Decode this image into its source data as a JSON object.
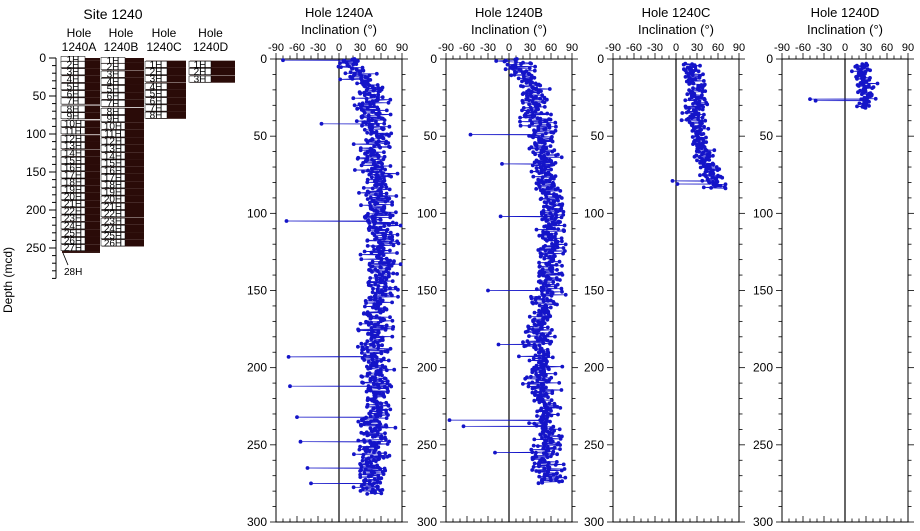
{
  "figure": {
    "site_title": "Site 1240",
    "ylabel": "Depth (mcd)",
    "depth_ticks": [
      "0",
      "50",
      "100",
      "150",
      "200",
      "250"
    ],
    "data_color": "#1414c8",
    "core_color": "#2a0b08"
  },
  "core_columns": [
    {
      "hole_label_line1": "Hole",
      "hole_label_line2": "1240A",
      "cores": [
        {
          "label": "1H",
          "top": 0,
          "bottom": 3.8
        },
        {
          "label": "2H",
          "top": 3.8,
          "bottom": 13.3
        },
        {
          "label": "3H",
          "top": 13.3,
          "bottom": 22.8
        },
        {
          "label": "4H",
          "top": 22.8,
          "bottom": 32.8
        },
        {
          "label": "5H",
          "top": 32.8,
          "bottom": 42.3
        },
        {
          "label": "6H",
          "top": 42.3,
          "bottom": 51.8
        },
        {
          "label": "7H",
          "top": 51.8,
          "bottom": 61.3
        },
        {
          "label": "8H",
          "top": 62.5,
          "bottom": 71.5
        },
        {
          "label": "9H",
          "top": 71.5,
          "bottom": 80.5
        },
        {
          "label": "10H",
          "top": 82.0,
          "bottom": 91.0
        },
        {
          "label": "11H",
          "top": 91.0,
          "bottom": 100.5
        },
        {
          "label": "12H",
          "top": 101.5,
          "bottom": 110.5
        },
        {
          "label": "13H",
          "top": 110.5,
          "bottom": 120.0
        },
        {
          "label": "14H",
          "top": 120.5,
          "bottom": 130.0
        },
        {
          "label": "15H",
          "top": 130.0,
          "bottom": 139.5
        },
        {
          "label": "16H",
          "top": 139.5,
          "bottom": 149.0
        },
        {
          "label": "17H",
          "top": 149.0,
          "bottom": 158.5
        },
        {
          "label": "18H",
          "top": 158.5,
          "bottom": 168.0
        },
        {
          "label": "19H",
          "top": 168.0,
          "bottom": 177.5
        },
        {
          "label": "20H",
          "top": 177.5,
          "bottom": 187.0
        },
        {
          "label": "21H",
          "top": 187.0,
          "bottom": 196.5
        },
        {
          "label": "22H",
          "top": 196.5,
          "bottom": 206.0
        },
        {
          "label": "23H",
          "top": 206.0,
          "bottom": 215.5
        },
        {
          "label": "24H",
          "top": 215.5,
          "bottom": 225.5
        },
        {
          "label": "25H",
          "top": 225.5,
          "bottom": 235.5
        },
        {
          "label": "26H",
          "top": 235.5,
          "bottom": 245.0
        },
        {
          "label": "27H",
          "top": 245.0,
          "bottom": 254.0
        },
        {
          "label": "28H",
          "top": 254.0,
          "bottom": 256.5
        }
      ]
    },
    {
      "hole_label_line1": "Hole",
      "hole_label_line2": "1240B",
      "cores": [
        {
          "label": "1H",
          "top": 0,
          "bottom": 6.5
        },
        {
          "label": "2H",
          "top": 6.5,
          "bottom": 16.0
        },
        {
          "label": "3H",
          "top": 16.5,
          "bottom": 26.0
        },
        {
          "label": "4H",
          "top": 26.0,
          "bottom": 35.5
        },
        {
          "label": "5H",
          "top": 35.5,
          "bottom": 45.5
        },
        {
          "label": "6H",
          "top": 45.5,
          "bottom": 55.0
        },
        {
          "label": "7H",
          "top": 55.0,
          "bottom": 64.5
        },
        {
          "label": "8H",
          "top": 65.5,
          "bottom": 75.0
        },
        {
          "label": "9H",
          "top": 75.0,
          "bottom": 84.5
        },
        {
          "label": "10H",
          "top": 84.5,
          "bottom": 94.5
        },
        {
          "label": "11H",
          "top": 94.5,
          "bottom": 104.5
        },
        {
          "label": "12H",
          "top": 104.5,
          "bottom": 114.0
        },
        {
          "label": "13H",
          "top": 114.0,
          "bottom": 124.0
        },
        {
          "label": "14H",
          "top": 124.0,
          "bottom": 133.5
        },
        {
          "label": "15H",
          "top": 133.5,
          "bottom": 143.0
        },
        {
          "label": "16H",
          "top": 143.0,
          "bottom": 152.5
        },
        {
          "label": "17H",
          "top": 152.5,
          "bottom": 162.0
        },
        {
          "label": "18H",
          "top": 162.0,
          "bottom": 171.5
        },
        {
          "label": "19H",
          "top": 171.5,
          "bottom": 181.0
        },
        {
          "label": "20H",
          "top": 181.0,
          "bottom": 190.5
        },
        {
          "label": "21H",
          "top": 190.5,
          "bottom": 200.0
        },
        {
          "label": "22H",
          "top": 200.0,
          "bottom": 209.5
        },
        {
          "label": "23H",
          "top": 210.0,
          "bottom": 219.5
        },
        {
          "label": "24H",
          "top": 219.5,
          "bottom": 229.0
        },
        {
          "label": "25H",
          "top": 229.0,
          "bottom": 238.5
        },
        {
          "label": "26H",
          "top": 238.5,
          "bottom": 248.0
        }
      ]
    },
    {
      "hole_label_line1": "Hole",
      "hole_label_line2": "1240C",
      "cores": [
        {
          "label": "1H",
          "top": 3.5,
          "bottom": 13.0
        },
        {
          "label": "2H",
          "top": 13.0,
          "bottom": 22.5
        },
        {
          "label": "3H",
          "top": 22.5,
          "bottom": 32.0
        },
        {
          "label": "4H",
          "top": 32.5,
          "bottom": 42.0
        },
        {
          "label": "5H",
          "top": 42.0,
          "bottom": 51.5
        },
        {
          "label": "6H",
          "top": 51.5,
          "bottom": 61.0
        },
        {
          "label": "7H",
          "top": 61.0,
          "bottom": 70.5
        },
        {
          "label": "8H",
          "top": 70.5,
          "bottom": 80.0
        }
      ]
    },
    {
      "hole_label_line1": "Hole",
      "hole_label_line2": "1240D",
      "cores": [
        {
          "label": "1H",
          "top": 3.5,
          "bottom": 13.0
        },
        {
          "label": "2H",
          "top": 13.0,
          "bottom": 22.5
        },
        {
          "label": "3H",
          "top": 23.0,
          "bottom": 32.5
        }
      ]
    }
  ],
  "chart_data": [
    {
      "type": "scatter",
      "title": "Hole 1240A",
      "xlabel": "Inclination (°)",
      "ylabel": "",
      "xlim": [
        -90,
        90
      ],
      "ylim": [
        300,
        0
      ],
      "xticks": [
        "-90",
        "-60",
        "-30",
        "0",
        "30",
        "60",
        "90"
      ],
      "yticks": [
        "0",
        "50",
        "100",
        "150",
        "200",
        "250",
        "300"
      ],
      "depth_range": [
        0,
        282
      ],
      "trend": [
        [
          0,
          10
        ],
        [
          20,
          45
        ],
        [
          60,
          52
        ],
        [
          100,
          58
        ],
        [
          140,
          62
        ],
        [
          160,
          55
        ],
        [
          190,
          48
        ],
        [
          220,
          52
        ],
        [
          250,
          50
        ],
        [
          282,
          45
        ]
      ],
      "spread": 22,
      "outliers": [
        [
          0.8,
          -80
        ],
        [
          42,
          -25
        ],
        [
          105,
          -75
        ],
        [
          193,
          -72
        ],
        [
          212,
          -70
        ],
        [
          232,
          -60
        ],
        [
          248,
          -55
        ],
        [
          265,
          -45
        ],
        [
          275,
          -40
        ]
      ]
    },
    {
      "type": "scatter",
      "title": "Hole 1240B",
      "xlabel": "Inclination (°)",
      "ylabel": "",
      "xlim": [
        -90,
        90
      ],
      "ylim": [
        300,
        0
      ],
      "xticks": [
        "-90",
        "-60",
        "-30",
        "0",
        "30",
        "60",
        "90"
      ],
      "yticks": [
        "0",
        "50",
        "100",
        "150",
        "200",
        "250",
        "300"
      ],
      "depth_range": [
        0,
        275
      ],
      "trend": [
        [
          0,
          5
        ],
        [
          20,
          35
        ],
        [
          60,
          50
        ],
        [
          100,
          62
        ],
        [
          140,
          58
        ],
        [
          160,
          50
        ],
        [
          190,
          42
        ],
        [
          220,
          50
        ],
        [
          250,
          55
        ],
        [
          275,
          58
        ]
      ],
      "spread": 20,
      "outliers": [
        [
          49,
          -55
        ],
        [
          68,
          -10
        ],
        [
          102,
          -12
        ],
        [
          150,
          -30
        ],
        [
          185,
          -15
        ],
        [
          234,
          -85
        ],
        [
          238,
          -65
        ],
        [
          255,
          -20
        ]
      ]
    },
    {
      "type": "scatter",
      "title": "Hole 1240C",
      "xlabel": "Inclination (°)",
      "ylabel": "",
      "xlim": [
        -90,
        90
      ],
      "ylim": [
        300,
        0
      ],
      "xticks": [
        "-90",
        "-60",
        "-30",
        "0",
        "30",
        "60",
        "90"
      ],
      "yticks": [
        "0",
        "50",
        "100",
        "150",
        "200",
        "250",
        "300"
      ],
      "depth_range": [
        3,
        84
      ],
      "trend": [
        [
          3,
          25
        ],
        [
          20,
          30
        ],
        [
          40,
          28
        ],
        [
          60,
          35
        ],
        [
          70,
          45
        ],
        [
          84,
          55
        ]
      ],
      "spread": 15,
      "outliers": [
        [
          79,
          -5
        ],
        [
          81,
          2
        ]
      ]
    },
    {
      "type": "scatter",
      "title": "Hole 1240D",
      "xlabel": "Inclination (°)",
      "ylabel": "",
      "xlim": [
        -90,
        90
      ],
      "ylim": [
        300,
        0
      ],
      "xticks": [
        "-90",
        "-60",
        "-30",
        "0",
        "30",
        "60",
        "90"
      ],
      "yticks": [
        "0",
        "50",
        "100",
        "150",
        "200",
        "250",
        "300"
      ],
      "depth_range": [
        3,
        32
      ],
      "trend": [
        [
          3,
          25
        ],
        [
          15,
          28
        ],
        [
          25,
          30
        ],
        [
          32,
          25
        ]
      ],
      "spread": 12,
      "outliers": [
        [
          26,
          -50
        ],
        [
          27,
          -42
        ]
      ]
    }
  ]
}
